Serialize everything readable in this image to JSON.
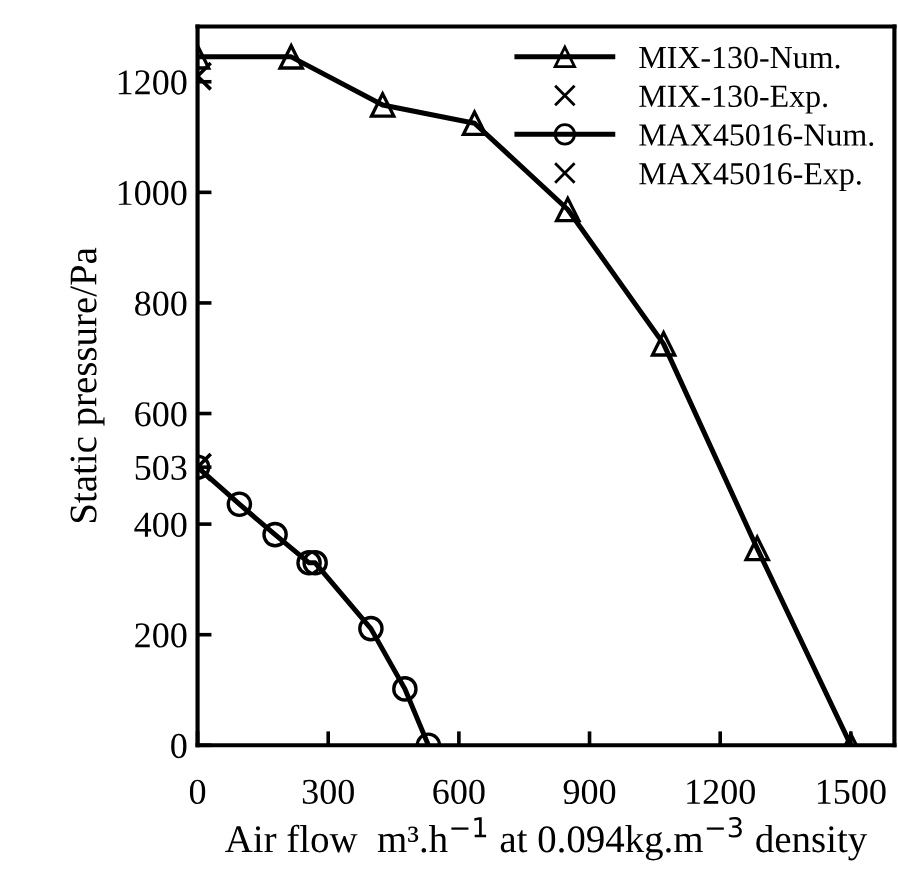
{
  "chart_data": {
    "type": "line",
    "xlabel": "Air flow  m³.h$^{−1}$ at 0.094kg.m$^{−3}$ density",
    "ylabel": "Static pressure/Pa",
    "xlim": [
      0,
      1600
    ],
    "ylim": [
      0,
      1300
    ],
    "xticks": [
      0,
      300,
      600,
      900,
      1200,
      1500
    ],
    "yticks": [
      0,
      200,
      400,
      503,
      600,
      800,
      1000,
      1200
    ],
    "grid": false,
    "legend": "top right",
    "line_style": "solid",
    "series": [
      {
        "name": "MIX-130-Num.",
        "marker": "triangle",
        "color": "#000000",
        "x": [
          0,
          215,
          425,
          636,
          850,
          1070,
          1285,
          1500
        ],
        "values": [
          1245,
          1245,
          1158,
          1125,
          969,
          726,
          356,
          0
        ]
      },
      {
        "name": "MIX-130-Exp.",
        "type": "scatter",
        "marker": "cross",
        "color": "#000000",
        "x": [
          0
        ],
        "values": [
          1210
        ]
      },
      {
        "name": "MAX45016-Num.",
        "marker": "circle",
        "color": "#000000",
        "x": [
          0,
          96,
          178,
          256,
          270,
          398,
          476,
          530
        ],
        "values": [
          503,
          436,
          381,
          330,
          330,
          211,
          102,
          0
        ]
      },
      {
        "name": "MAX45016-Exp.",
        "type": "scatter",
        "marker": "cross",
        "color": "#000000",
        "x": [
          0
        ],
        "values": [
          503
        ]
      }
    ]
  }
}
